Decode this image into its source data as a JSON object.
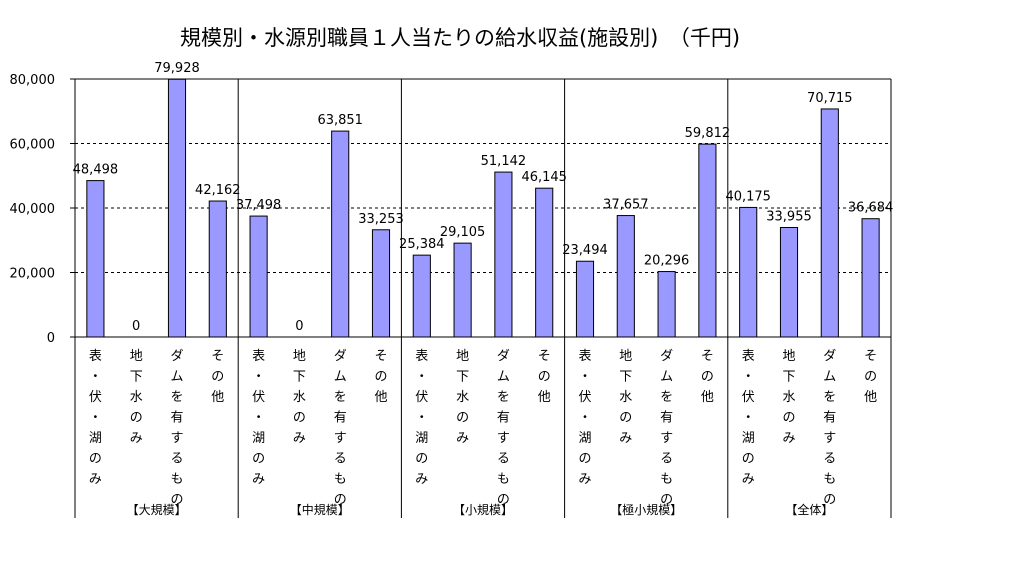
{
  "chart_data": {
    "type": "bar",
    "title": "規模別・水源別職員１人当たりの給水収益(施設別)　（千円)",
    "xlabel": "",
    "ylabel": "",
    "ylim": [
      0,
      80000
    ],
    "yticks": [
      0,
      20000,
      40000,
      60000,
      80000
    ],
    "ytick_labels": [
      "0",
      "20,000",
      "40,000",
      "60,000",
      "80,000"
    ],
    "grid": true,
    "legend": "none",
    "bar_color": "#9999ff",
    "categories": [
      "表・伏・湖のみ",
      "地下水のみ",
      "ダムを有するもの",
      "その他"
    ],
    "groups": [
      {
        "label": "【大規模】",
        "values": [
          48498,
          0,
          79928,
          42162
        ],
        "value_labels": [
          "48,498",
          "0",
          "79,928",
          "42,162"
        ]
      },
      {
        "label": "【中規模】",
        "values": [
          37498,
          0,
          63851,
          33253
        ],
        "value_labels": [
          "37,498",
          "0",
          "63,851",
          "33,253"
        ]
      },
      {
        "label": "【小規模】",
        "values": [
          25384,
          29105,
          51142,
          46145
        ],
        "value_labels": [
          "25,384",
          "29,105",
          "51,142",
          "46,145"
        ]
      },
      {
        "label": "【極小規模】",
        "values": [
          23494,
          37657,
          20296,
          59812
        ],
        "value_labels": [
          "23,494",
          "37,657",
          "20,296",
          "59,812"
        ]
      },
      {
        "label": "【全体】",
        "values": [
          40175,
          33955,
          70715,
          36684
        ],
        "value_labels": [
          "40,175",
          "33,955",
          "70,715",
          "36,684"
        ]
      }
    ]
  }
}
